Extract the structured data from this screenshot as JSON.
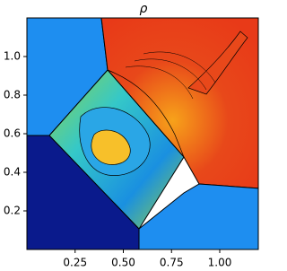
{
  "chart_data": {
    "type": "contour",
    "title": "ρ",
    "xlim": [
      0,
      1.2
    ],
    "ylim": [
      0,
      1.2
    ],
    "xticks": [
      0.25,
      {
        "value": 0.5,
        "label": "0.50"
      },
      0.75,
      {
        "value": 1.0,
        "label": "1.00"
      }
    ],
    "yticks": [
      0.2,
      0.4,
      0.6,
      0.8,
      {
        "value": 1.0,
        "label": "1.0"
      }
    ],
    "grid": false
  }
}
